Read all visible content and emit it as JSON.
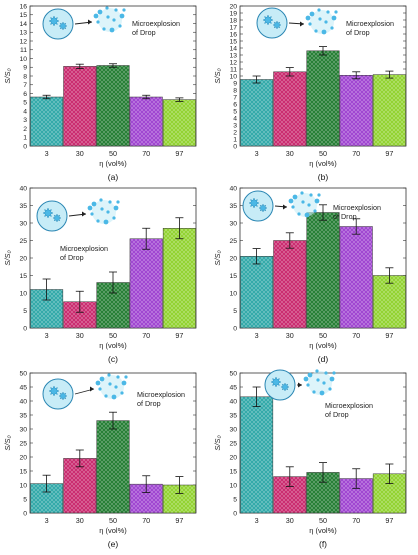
{
  "colors": {
    "teal": "#2ba6a6",
    "magenta": "#c8246a",
    "green": "#1e7a2e",
    "purple": "#9c3fcf",
    "lime": "#8ed12a",
    "drop_fill": "#c7ecf7",
    "drop_stroke": "#2a86b3",
    "particle": "#4bb8e6"
  },
  "inset": {
    "arrow_icon": "arrow-right",
    "drop_icon": "droplet-with-particles",
    "burst_icon": "microexplosion-burst"
  },
  "chart_data": [
    {
      "type": "bar",
      "panel_label": "(a)",
      "categories": [
        "3",
        "30",
        "50",
        "70",
        "97"
      ],
      "values": [
        5.6,
        9.1,
        9.2,
        5.6,
        5.3
      ],
      "errors": [
        0.2,
        0.25,
        0.2,
        0.2,
        0.2
      ],
      "ylabel": "S/S₀",
      "xlabel": "η (vol%)",
      "ylim": [
        0,
        16
      ],
      "yticks": [
        0,
        1,
        2,
        3,
        4,
        5,
        6,
        7,
        8,
        9,
        10,
        11,
        12,
        13,
        14,
        15,
        16
      ],
      "annotation": [
        "Microexplosion",
        "of Drop"
      ]
    },
    {
      "type": "bar",
      "panel_label": "(b)",
      "categories": [
        "3",
        "30",
        "50",
        "70",
        "97"
      ],
      "values": [
        9.5,
        10.6,
        13.6,
        10.1,
        10.2
      ],
      "errors": [
        0.5,
        0.6,
        0.6,
        0.5,
        0.5
      ],
      "ylabel": "S/S₀",
      "xlabel": "η (vol%)",
      "ylim": [
        0,
        20
      ],
      "yticks": [
        0,
        1,
        2,
        3,
        4,
        5,
        6,
        7,
        8,
        9,
        10,
        11,
        12,
        13,
        14,
        15,
        16,
        17,
        18,
        19,
        20
      ],
      "annotation": [
        "Microexplosion",
        "of Drop"
      ]
    },
    {
      "type": "bar",
      "panel_label": "(c)",
      "categories": [
        "3",
        "30",
        "50",
        "70",
        "97"
      ],
      "values": [
        11,
        7.5,
        13,
        25.5,
        28.5
      ],
      "errors": [
        3,
        3,
        3,
        3,
        3
      ],
      "ylabel": "S/S₀",
      "xlabel": "η (vol%)",
      "ylim": [
        0,
        40
      ],
      "yticks": [
        0,
        5,
        10,
        15,
        20,
        25,
        30,
        35,
        40
      ],
      "annotation": [
        "Microexplosion",
        "of Drop"
      ]
    },
    {
      "type": "bar",
      "panel_label": "(d)",
      "categories": [
        "3",
        "30",
        "50",
        "70",
        "97"
      ],
      "values": [
        20.5,
        25,
        33,
        29,
        15
      ],
      "errors": [
        2.2,
        2.2,
        2.2,
        2.2,
        2.2
      ],
      "ylabel": "S/S₀",
      "xlabel": "η (vol%)",
      "ylim": [
        0,
        40
      ],
      "yticks": [
        0,
        5,
        10,
        15,
        20,
        25,
        30,
        35,
        40
      ],
      "annotation": [
        "Microexplosion",
        "of Drop"
      ]
    },
    {
      "type": "bar",
      "panel_label": "(e)",
      "categories": [
        "3",
        "30",
        "50",
        "70",
        "97"
      ],
      "values": [
        10.5,
        19.5,
        33,
        10.3,
        10
      ],
      "errors": [
        3,
        3,
        3,
        3,
        3
      ],
      "ylabel": "S/S₀",
      "xlabel": "η (vol%)",
      "ylim": [
        0,
        50
      ],
      "yticks": [
        0,
        5,
        10,
        15,
        20,
        25,
        30,
        35,
        40,
        45,
        50
      ],
      "annotation": [
        "Microexplosion",
        "of Drop"
      ]
    },
    {
      "type": "bar",
      "panel_label": "(f)",
      "categories": [
        "3",
        "30",
        "50",
        "70",
        "97"
      ],
      "values": [
        41.5,
        13,
        14.5,
        12.3,
        14
      ],
      "errors": [
        3.5,
        3.5,
        3.5,
        3.5,
        3.5
      ],
      "ylabel": "S/S₀",
      "xlabel": "η (vol%)",
      "ylim": [
        0,
        50
      ],
      "yticks": [
        0,
        5,
        10,
        15,
        20,
        25,
        30,
        35,
        40,
        45,
        50
      ],
      "annotation": [
        "Microexplosion",
        "of Drop"
      ]
    }
  ]
}
